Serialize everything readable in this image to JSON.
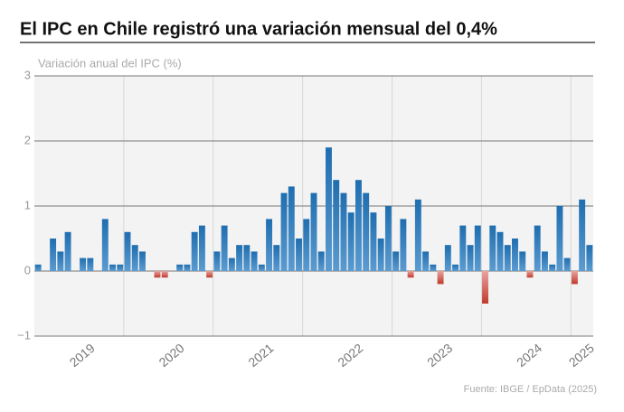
{
  "chart_data": {
    "type": "bar",
    "title": "El IPC en Chile registró una variación mensual del 0,4%",
    "y_label": "Variación anual del IPC (%)",
    "source": "Fuente: IBGE / EpData (2025)",
    "categories": [
      null,
      null,
      null,
      null,
      null,
      null,
      "2019",
      null,
      null,
      null,
      null,
      null,
      null,
      null,
      null,
      null,
      null,
      null,
      "2020",
      null,
      null,
      null,
      null,
      null,
      null,
      null,
      null,
      null,
      null,
      null,
      "2021",
      null,
      null,
      null,
      null,
      null,
      null,
      null,
      null,
      null,
      null,
      null,
      "2022",
      null,
      null,
      null,
      null,
      null,
      null,
      null,
      null,
      null,
      null,
      null,
      "2023",
      null,
      null,
      null,
      null,
      null,
      null,
      null,
      null,
      null,
      null,
      null,
      "2024",
      null,
      null,
      null,
      null,
      null,
      null,
      "2025",
      null
    ],
    "values": [
      0.1,
      0,
      0.5,
      0.3,
      0.6,
      0,
      0.2,
      0.2,
      0,
      0.8,
      0.1,
      0.1,
      0.6,
      0.4,
      0.3,
      0,
      -0.1,
      -0.1,
      0,
      0.1,
      0.1,
      0.6,
      0.7,
      -0.1,
      0.3,
      0.7,
      0.2,
      0.4,
      0.4,
      0.3,
      0.1,
      0.8,
      0.4,
      1.2,
      1.3,
      0.5,
      0.8,
      1.2,
      0.3,
      1.9,
      1.4,
      1.2,
      0.9,
      1.4,
      1.2,
      0.9,
      0.5,
      1.0,
      0.3,
      0.8,
      -0.1,
      1.1,
      0.3,
      0.1,
      -0.2,
      0.4,
      0.1,
      0.7,
      0.4,
      0.7,
      -0.5,
      0.7,
      0.6,
      0.4,
      0.5,
      0.3,
      -0.1,
      0.7,
      0.3,
      0.1,
      1.0,
      0.2,
      -0.2,
      1.1,
      0.4
    ],
    "color": "#1f6eb0",
    "negative_color": "#c0392b",
    "ylim": [
      -1,
      3
    ],
    "yticks": [
      {
        "value": -1,
        "label": "−1"
      },
      0,
      1,
      2,
      3
    ],
    "grid": true
  }
}
